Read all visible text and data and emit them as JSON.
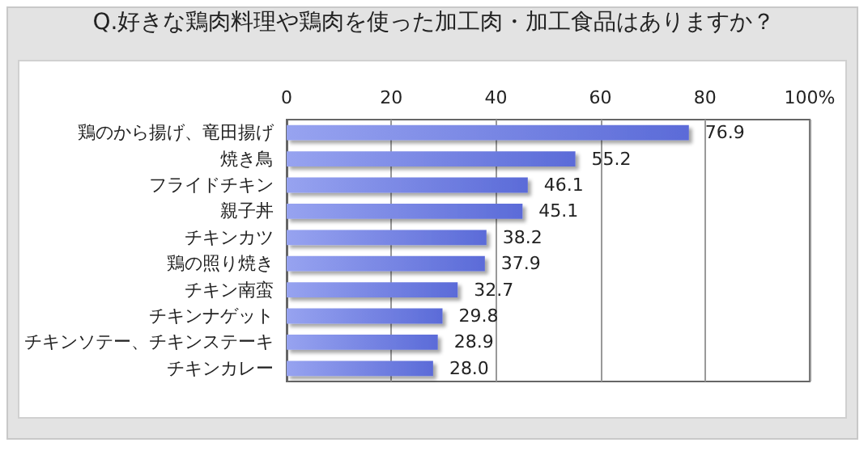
{
  "chart_data": {
    "type": "bar",
    "orientation": "horizontal",
    "title": "Q.好きな鶏肉料理や鶏肉を使った加工肉・加工食品はありますか？",
    "categories": [
      "鶏のから揚げ、竜田揚げ",
      "焼き鳥",
      "フライドチキン",
      "親子丼",
      "チキンカツ",
      "鶏の照り焼き",
      "チキン南蛮",
      "チキンナゲット",
      "チキンソテー、チキンステーキ",
      "チキンカレー"
    ],
    "values": [
      76.9,
      55.2,
      46.1,
      45.1,
      38.2,
      37.9,
      32.7,
      29.8,
      28.9,
      28.0
    ],
    "value_labels": [
      "76.9",
      "55.2",
      "46.1",
      "45.1",
      "38.2",
      "37.9",
      "32.7",
      "29.8",
      "28.9",
      "28.0"
    ],
    "color": "#5b6bd8",
    "xlim": [
      0,
      100
    ],
    "xticks": [
      0,
      20,
      40,
      60,
      80,
      {
        "value": 100,
        "label": "100%"
      }
    ],
    "grid": "x"
  }
}
